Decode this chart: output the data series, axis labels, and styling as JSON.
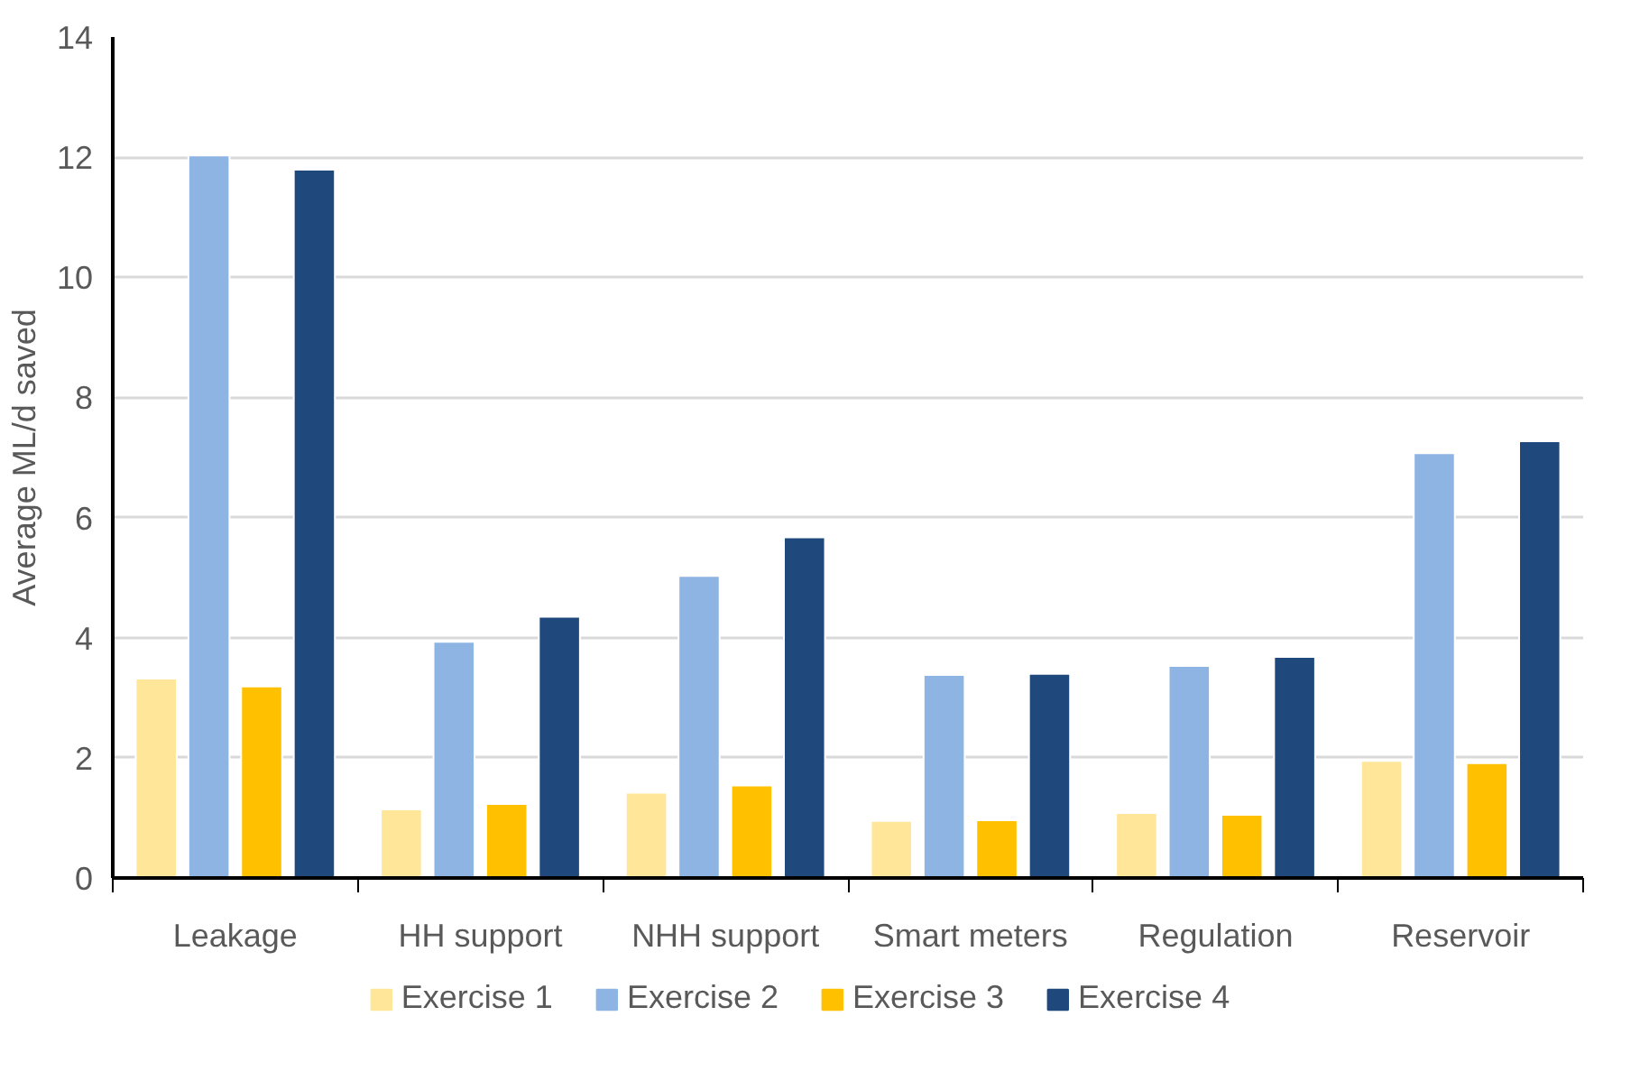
{
  "chart_data": {
    "type": "bar",
    "ylabel": "Average ML/d saved",
    "categories": [
      "Leakage",
      "HH support",
      "NHH support",
      "Smart meters",
      "Regulation",
      "Reservoir"
    ],
    "series": [
      {
        "name": "Exercise 1",
        "color": "#ffe699",
        "values": [
          3.32,
          1.14,
          1.42,
          0.95,
          1.08,
          1.95
        ]
      },
      {
        "name": "Exercise 2",
        "color": "#8eb4e3",
        "values": [
          12.03,
          3.93,
          5.03,
          3.38,
          3.53,
          7.07
        ]
      },
      {
        "name": "Exercise 3",
        "color": "#ffc000",
        "values": [
          3.19,
          1.23,
          1.54,
          0.96,
          1.05,
          1.91
        ]
      },
      {
        "name": "Exercise 4",
        "color": "#1f497d",
        "values": [
          11.79,
          4.35,
          5.67,
          3.4,
          3.68,
          7.27
        ]
      }
    ],
    "ylim": [
      0,
      14
    ],
    "yticks": [
      0,
      2,
      4,
      6,
      8,
      10,
      12,
      14
    ],
    "grid": "y",
    "legend": "bottom"
  }
}
